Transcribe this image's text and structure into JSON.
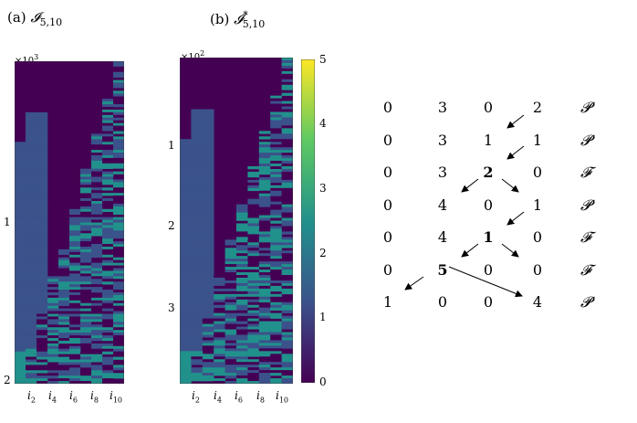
{
  "panels": [
    {
      "id": "a",
      "label": "(a)",
      "symbol": "𝓘",
      "sub": "5,10",
      "sup": "",
      "exponent_base": "×10",
      "exponent": "3",
      "y_ticks": [
        "1",
        "2"
      ],
      "x_ticks": [
        {
          "i": "i",
          "n": "2"
        },
        {
          "i": "i",
          "n": "4"
        },
        {
          "i": "i",
          "n": "6"
        },
        {
          "i": "i",
          "n": "8"
        },
        {
          "i": "i",
          "n": "10"
        }
      ]
    },
    {
      "id": "b",
      "label": "(b)",
      "symbol": "𝓘",
      "sub": "5,10",
      "sup": "*",
      "exponent_base": "×10",
      "exponent": "2",
      "y_ticks": [
        "1",
        "2",
        "3"
      ],
      "x_ticks": [
        {
          "i": "i",
          "n": "2"
        },
        {
          "i": "i",
          "n": "4"
        },
        {
          "i": "i",
          "n": "6"
        },
        {
          "i": "i",
          "n": "8"
        },
        {
          "i": "i",
          "n": "10"
        }
      ]
    }
  ],
  "colorbar": {
    "ticks": [
      "0",
      "1",
      "2",
      "3",
      "4",
      "5"
    ],
    "colors": [
      "#440154",
      "#3b528b",
      "#21918c",
      "#5ec962",
      "#fde725"
    ]
  },
  "table": {
    "rows": [
      {
        "cells": [
          "0",
          "3",
          "0",
          "2"
        ],
        "bold": [],
        "tag": "𝓟"
      },
      {
        "cells": [
          "0",
          "3",
          "1",
          "1"
        ],
        "bold": [],
        "tag": "𝓟"
      },
      {
        "cells": [
          "0",
          "3",
          "2",
          "0"
        ],
        "bold": [
          2
        ],
        "tag": "𝓕"
      },
      {
        "cells": [
          "0",
          "4",
          "0",
          "1"
        ],
        "bold": [],
        "tag": "𝓟"
      },
      {
        "cells": [
          "0",
          "4",
          "1",
          "0"
        ],
        "bold": [
          2
        ],
        "tag": "𝓕"
      },
      {
        "cells": [
          "0",
          "5",
          "0",
          "0"
        ],
        "bold": [
          1
        ],
        "tag": "𝓕"
      },
      {
        "cells": [
          "1",
          "0",
          "0",
          "4"
        ],
        "bold": [],
        "tag": "𝓟"
      }
    ]
  }
}
